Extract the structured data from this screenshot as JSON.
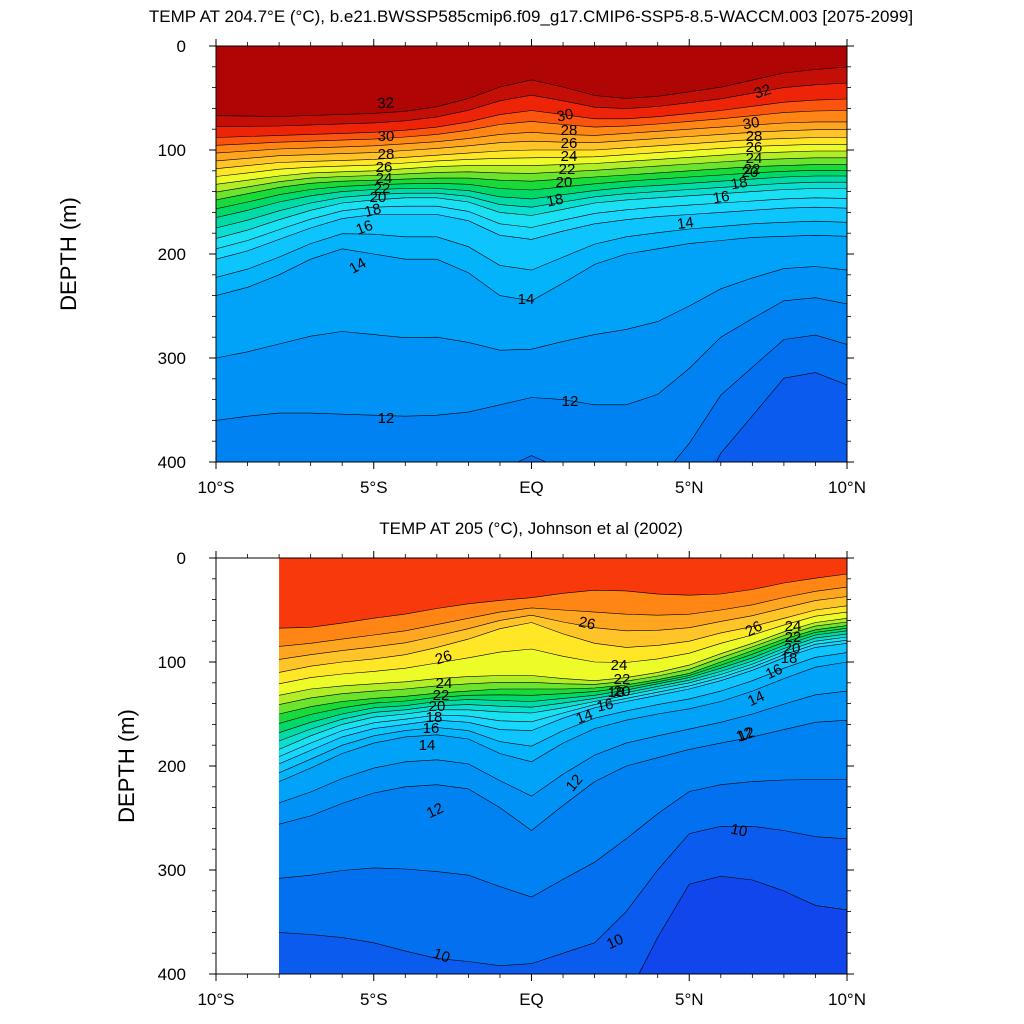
{
  "chart_data": [
    {
      "type": "contour",
      "title": "TEMP AT 204.7°E (°C), b.e21.BWSSP585cmip6.f09_g17.CMIP6-SSP5-8.5-WACCM.003 [2075-2099]",
      "xlabel": "",
      "ylabel": "DEPTH (m)",
      "xlim": [
        -10,
        10
      ],
      "ylim": [
        0,
        400
      ],
      "y_reversed": true,
      "x_ticks": [
        -10,
        -5,
        0,
        5,
        10
      ],
      "x_tick_labels": [
        "10°S",
        "5°S",
        "EQ",
        "5°N",
        "10°N"
      ],
      "y_ticks": [
        0,
        100,
        200,
        300,
        400
      ],
      "y_tick_labels": [
        "0",
        "100",
        "200",
        "300",
        "400"
      ],
      "x": [
        -10,
        -9,
        -8,
        -7,
        -6,
        -5,
        -4,
        -3,
        -2,
        -1,
        0,
        1,
        2,
        3,
        4,
        5,
        6,
        7,
        8,
        9,
        10
      ],
      "levels": [
        10,
        11,
        12,
        13,
        14,
        15,
        16,
        17,
        18,
        19,
        20,
        21,
        22,
        23,
        24,
        25,
        26,
        27,
        28,
        29,
        30,
        31,
        32
      ],
      "isotherm_depths": {
        "12": [
          360,
          356,
          353,
          353,
          354,
          355,
          356,
          355,
          352,
          345,
          338,
          340,
          345,
          345,
          335,
          310,
          280,
          262,
          245,
          242,
          248
        ],
        "14": [
          240,
          232,
          220,
          205,
          195,
          200,
          205,
          205,
          218,
          240,
          245,
          228,
          210,
          200,
          195,
          190,
          187,
          184,
          183,
          182,
          183
        ],
        "16": [
          205,
          197,
          186,
          175,
          166,
          162,
          162,
          162,
          168,
          182,
          186,
          178,
          171,
          167,
          164,
          162,
          160,
          158,
          156,
          155,
          156
        ],
        "18": [
          185,
          177,
          167,
          158,
          151,
          148,
          146,
          146,
          150,
          160,
          163,
          157,
          151,
          148,
          146,
          144,
          142,
          140,
          138,
          137,
          137
        ],
        "20": [
          165,
          158,
          150,
          144,
          140,
          138,
          137,
          137,
          139,
          145,
          147,
          143,
          139,
          136,
          134,
          132,
          130,
          128,
          126,
          125,
          125
        ],
        "22": [
          148,
          142,
          136,
          132,
          130,
          129,
          128,
          127,
          127,
          129,
          130,
          128,
          126,
          124,
          122,
          120,
          118,
          116,
          115,
          114,
          114
        ],
        "24": [
          133,
          129,
          125,
          122,
          121,
          120,
          118,
          116,
          115,
          115,
          115,
          114,
          113,
          111,
          109,
          107,
          105,
          103,
          102,
          101,
          101
        ],
        "26": [
          118,
          115,
          112,
          111,
          110,
          109,
          107,
          105,
          103,
          101,
          100,
          100,
          100,
          98,
          96,
          94,
          92,
          90,
          89,
          88,
          88
        ],
        "28": [
          103,
          101,
          99,
          98,
          97,
          96,
          94,
          92,
          89,
          85,
          83,
          85,
          86,
          84,
          82,
          80,
          78,
          76,
          74,
          73,
          73
        ],
        "30": [
          88,
          87,
          86,
          85,
          84,
          83,
          81,
          78,
          73,
          66,
          62,
          66,
          70,
          70,
          68,
          65,
          62,
          58,
          54,
          52,
          51
        ]
      },
      "contour_labels": [
        "32",
        "30",
        "28",
        "26",
        "24",
        "22",
        "20",
        "18",
        "16",
        "14",
        "14",
        "12",
        "12",
        "30",
        "28",
        "26",
        "24",
        "22",
        "20",
        "18",
        "32",
        "30",
        "28",
        "26",
        "24",
        "22",
        "20",
        "18",
        "16",
        "14"
      ]
    },
    {
      "type": "contour",
      "title": "TEMP AT 205 (°C), Johnson et al (2002)",
      "xlabel": "",
      "ylabel": "DEPTH (m)",
      "xlim": [
        -10,
        10
      ],
      "ylim": [
        0,
        400
      ],
      "y_reversed": true,
      "data_x_range": [
        -8,
        10
      ],
      "x_ticks": [
        -10,
        -5,
        0,
        5,
        10
      ],
      "x_tick_labels": [
        "10°S",
        "5°S",
        "EQ",
        "5°N",
        "10°N"
      ],
      "y_ticks": [
        0,
        100,
        200,
        300,
        400
      ],
      "y_tick_labels": [
        "0",
        "100",
        "200",
        "300",
        "400"
      ],
      "x": [
        -8,
        -7,
        -6,
        -5,
        -4,
        -3,
        -2,
        -1,
        0,
        1,
        2,
        3,
        4,
        5,
        6,
        7,
        8,
        9,
        10
      ],
      "levels": [
        9,
        10,
        11,
        12,
        13,
        14,
        15,
        16,
        17,
        18,
        19,
        20,
        21,
        22,
        23,
        24,
        25,
        26,
        27,
        28,
        29
      ],
      "isotherm_depths": {
        "10": [
          360,
          362,
          365,
          370,
          378,
          385,
          388,
          392,
          390,
          380,
          370,
          340,
          300,
          265,
          258,
          258,
          262,
          268,
          270
        ],
        "12": [
          256,
          248,
          236,
          226,
          220,
          218,
          222,
          240,
          262,
          238,
          215,
          200,
          192,
          184,
          178,
          172,
          165,
          158,
          156
        ],
        "14": [
          215,
          202,
          188,
          178,
          172,
          170,
          174,
          188,
          196,
          178,
          164,
          156,
          150,
          145,
          138,
          128,
          116,
          105,
          100
        ],
        "16": [
          198,
          185,
          172,
          164,
          160,
          156,
          158,
          165,
          166,
          154,
          144,
          138,
          132,
          126,
          118,
          108,
          96,
          86,
          82
        ],
        "18": [
          184,
          171,
          160,
          153,
          150,
          146,
          146,
          148,
          149,
          144,
          138,
          132,
          126,
          120,
          112,
          102,
          90,
          80,
          76
        ],
        "20": [
          168,
          158,
          150,
          144,
          142,
          138,
          136,
          137,
          138,
          135,
          132,
          127,
          121,
          115,
          106,
          96,
          84,
          74,
          70
        ],
        "22": [
          150,
          143,
          138,
          135,
          133,
          130,
          128,
          126,
          126,
          126,
          125,
          122,
          117,
          111,
          100,
          89,
          78,
          69,
          65
        ],
        "24": [
          132,
          126,
          123,
          121,
          119,
          116,
          114,
          113,
          113,
          116,
          118,
          115,
          110,
          103,
          92,
          82,
          71,
          62,
          58
        ],
        "26": [
          110,
          104,
          100,
          97,
          93,
          86,
          78,
          68,
          62,
          73,
          82,
          86,
          84,
          80,
          72,
          66,
          58,
          50,
          46
        ],
        "28": [
          85,
          82,
          78,
          74,
          70,
          64,
          58,
          52,
          48,
          50,
          52,
          54,
          55,
          54,
          50,
          45,
          38,
          32,
          28
        ]
      },
      "contour_labels": [
        "26",
        "24",
        "22",
        "20",
        "18",
        "16",
        "14",
        "12",
        "26",
        "24",
        "22",
        "20",
        "18",
        "16",
        "14",
        "12",
        "12",
        "26",
        "24",
        "22",
        "20",
        "18",
        "16",
        "14",
        "12",
        "10",
        "10",
        "10"
      ]
    }
  ]
}
